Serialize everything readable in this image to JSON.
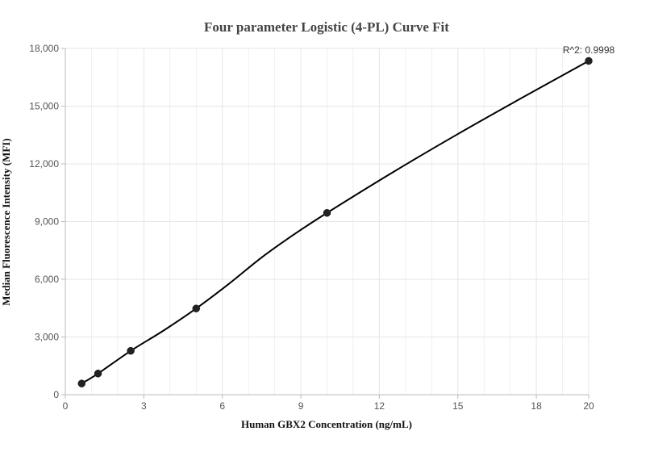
{
  "chart_data": {
    "type": "scatter",
    "title": "Four parameter Logistic (4-PL) Curve Fit",
    "xlabel": "Human GBX2 Concentration  (ng/mL)",
    "ylabel": "Median Fluorescence Intensity (MFI)",
    "xlim": [
      0,
      20
    ],
    "ylim": [
      0,
      18000
    ],
    "x_ticks": [
      0,
      3,
      6,
      9,
      12,
      15,
      18,
      20
    ],
    "x_tick_labels": [
      "0",
      "3",
      "6",
      "9",
      "12",
      "15",
      "18",
      "20"
    ],
    "y_ticks": [
      0,
      3000,
      6000,
      9000,
      12000,
      15000,
      18000
    ],
    "y_tick_labels": [
      "0",
      "3,000",
      "6,000",
      "9,000",
      "12,000",
      "15,000",
      "18,000"
    ],
    "grid": true,
    "points": {
      "x": [
        0.625,
        1.25,
        2.5,
        5,
        10,
        20
      ],
      "y": [
        580,
        1100,
        2280,
        4480,
        9450,
        17350
      ]
    },
    "fit_curve": {
      "x": [
        0.625,
        1.25,
        2.5,
        3.75,
        5,
        6.25,
        7.5,
        8.75,
        10,
        12.5,
        15,
        17.5,
        20
      ],
      "y": [
        580,
        1100,
        2280,
        3330,
        4480,
        5760,
        7130,
        8340,
        9450,
        11550,
        13550,
        15470,
        17350
      ]
    },
    "annotation": "R^2: 0.9998",
    "colors": {
      "points": "#222222",
      "curve": "#000000",
      "grid": "#e6e6e6",
      "axis": "#bbbbbb"
    }
  }
}
